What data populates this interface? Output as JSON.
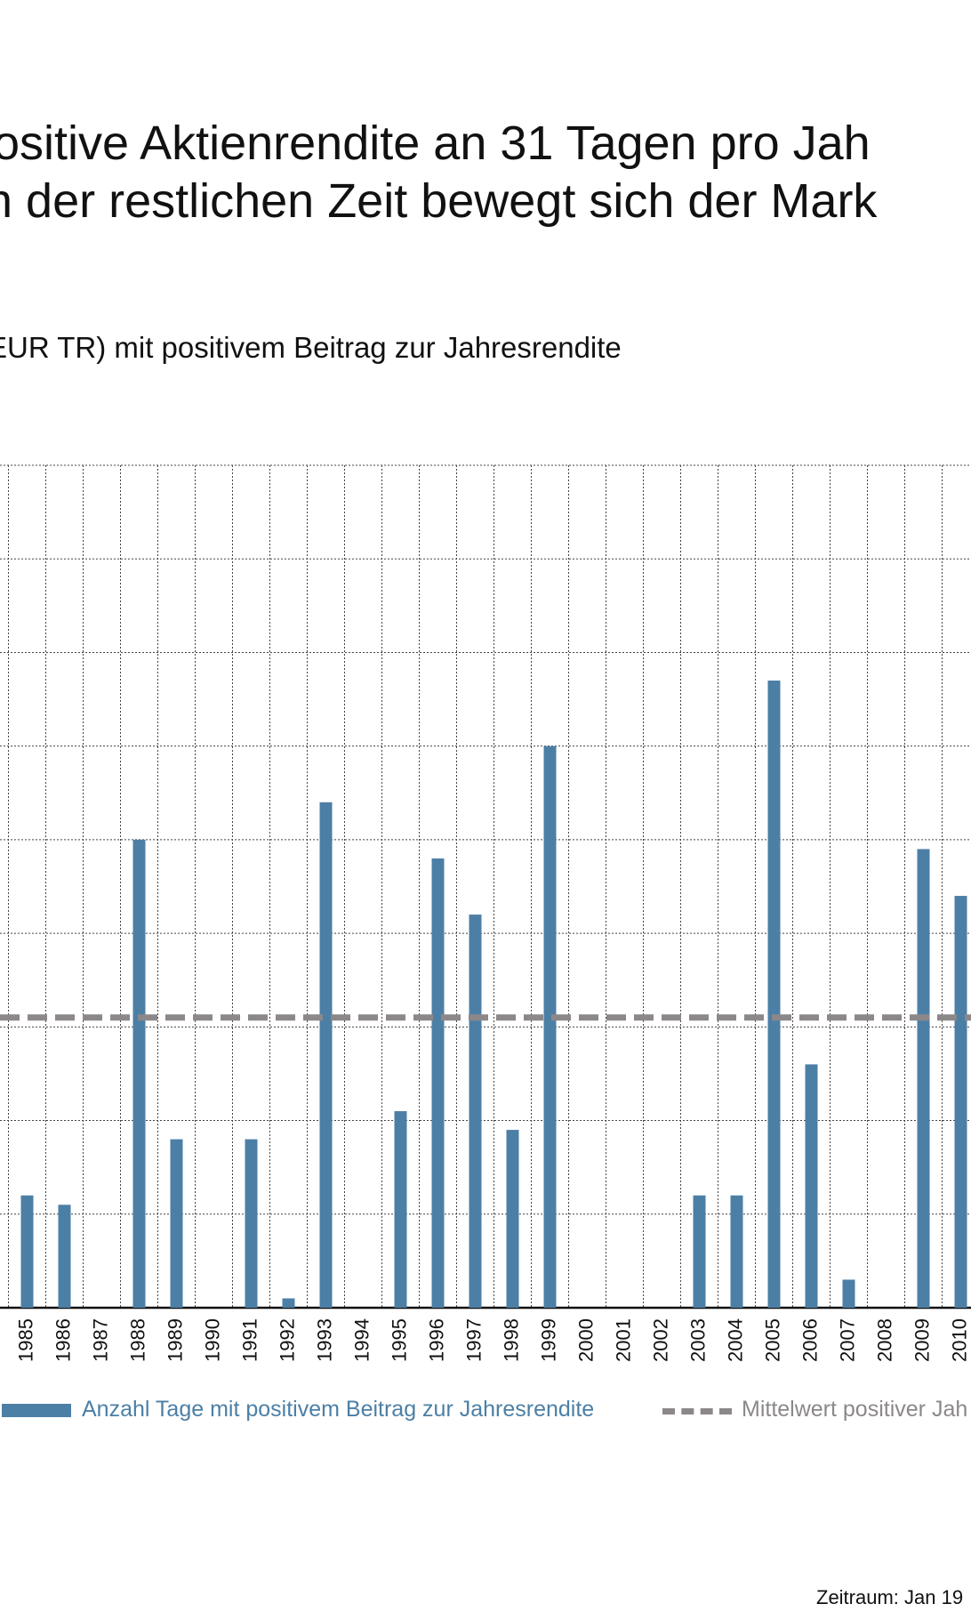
{
  "title_line1": "ositive Aktienrendite an 31 Tagen pro Jah",
  "title_line2": "n der restlichen Zeit bewegt sich der Mark",
  "subtitle": "EUR TR) mit positivem Beitrag zur Jahresrendite",
  "legend": {
    "bar_label": "Anzahl Tage mit positivem Beitrag zur Jahresrendite",
    "mean_label": "Mittelwert positiver Jah"
  },
  "source": "Zeitraum: Jan 19",
  "colors": {
    "bar": "#4c7fa6",
    "mean": "#8c8889",
    "grid": "#444444"
  },
  "chart_data": {
    "type": "bar",
    "categories": [
      "1985",
      "1986",
      "1987",
      "1988",
      "1989",
      "1990",
      "1991",
      "1992",
      "1993",
      "1994",
      "1995",
      "1996",
      "1997",
      "1998",
      "1999",
      "2000",
      "2001",
      "2002",
      "2003",
      "2004",
      "2005",
      "2006",
      "2007",
      "2008",
      "2009",
      "2010"
    ],
    "values": [
      12,
      11,
      0,
      50,
      18,
      0,
      18,
      1,
      54,
      0,
      21,
      48,
      42,
      19,
      60,
      0,
      0,
      0,
      12,
      12,
      67,
      26,
      3,
      0,
      49,
      44
    ],
    "mean": 31,
    "ylim": [
      0,
      90
    ],
    "grid": true,
    "legend_position": "bottom"
  }
}
